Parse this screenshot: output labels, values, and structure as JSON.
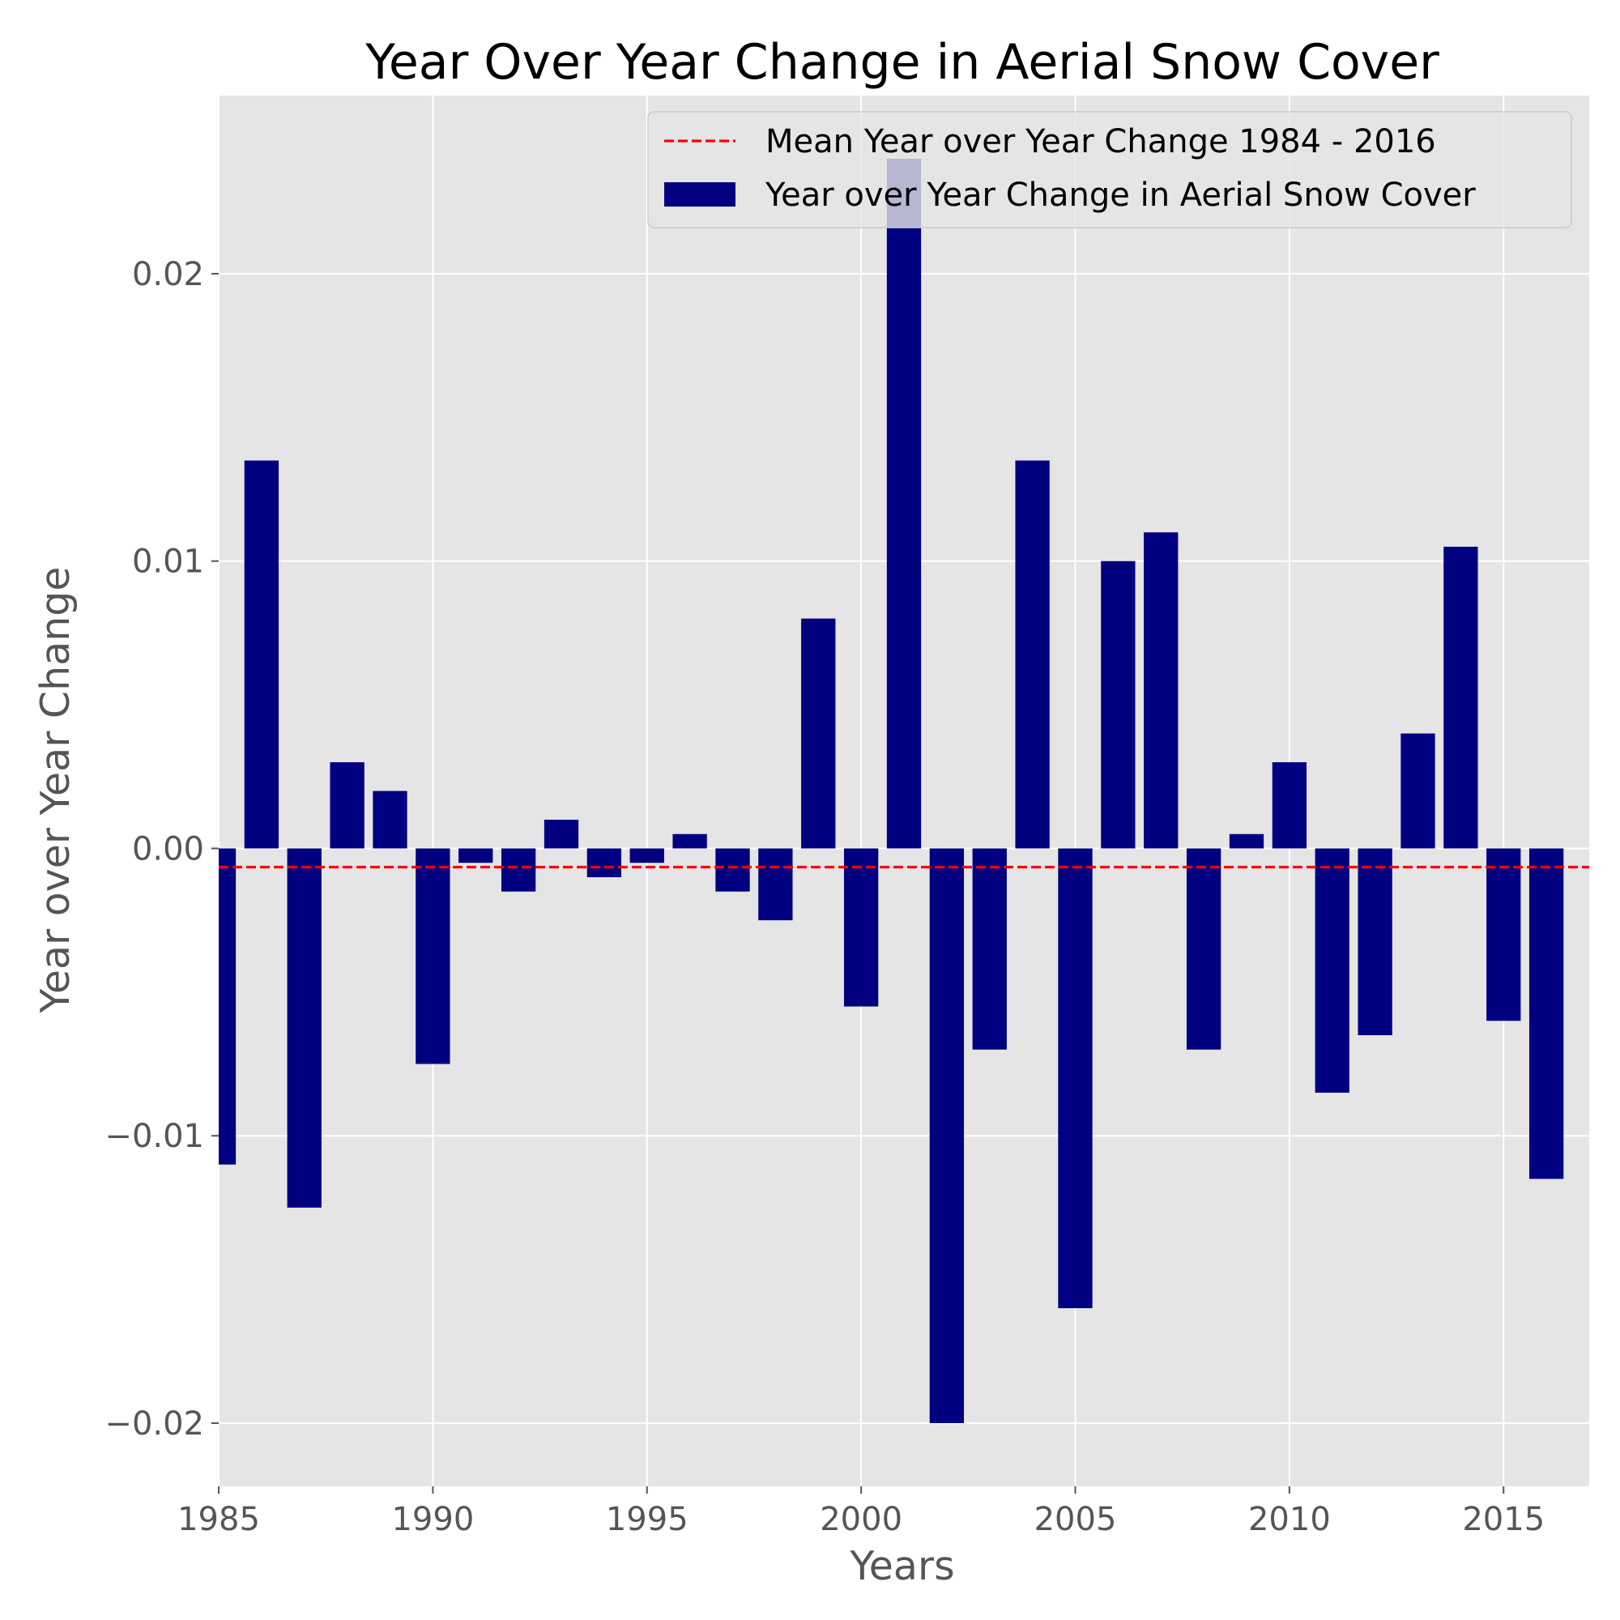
{
  "chart_data": {
    "type": "bar",
    "title": "Year Over Year Change in Aerial Snow Cover",
    "xlabel": "Years",
    "ylabel": "Year over Year Change",
    "xlim": [
      1985,
      2017
    ],
    "ylim": [
      -0.0222,
      0.0262
    ],
    "x_ticks": [
      1985,
      1990,
      1995,
      2000,
      2005,
      2010,
      2015
    ],
    "x_tick_labels": [
      "1985",
      "1990",
      "1995",
      "2000",
      "2005",
      "2010",
      "2015"
    ],
    "y_ticks": [
      -0.02,
      -0.01,
      0.0,
      0.01,
      0.02
    ],
    "y_tick_labels": [
      "−0.02",
      "−0.01",
      "0.00",
      "0.01",
      "0.02"
    ],
    "grid": true,
    "legend_position": "top-right",
    "series": [
      {
        "name": "Year over Year Change in Aerial Snow Cover",
        "color": "#000080",
        "bar_width": 0.8,
        "x": [
          1985,
          1986,
          1987,
          1988,
          1989,
          1990,
          1991,
          1992,
          1993,
          1994,
          1995,
          1996,
          1997,
          1998,
          1999,
          2000,
          2001,
          2002,
          2003,
          2004,
          2005,
          2006,
          2007,
          2008,
          2009,
          2010,
          2011,
          2012,
          2013,
          2014,
          2015,
          2016
        ],
        "values": [
          -0.011,
          0.0135,
          -0.0125,
          0.003,
          0.002,
          -0.0075,
          -0.0005,
          -0.0015,
          0.001,
          -0.001,
          -0.0005,
          0.0005,
          -0.0015,
          -0.0025,
          0.008,
          -0.0055,
          0.024,
          -0.02,
          -0.007,
          0.0135,
          -0.016,
          0.01,
          0.011,
          -0.007,
          0.0005,
          0.003,
          -0.0085,
          -0.0065,
          0.004,
          0.0105,
          -0.006,
          -0.0115
        ]
      }
    ],
    "mean_line": {
      "name": "Mean Year over Year Change 1984 - 2016",
      "value": -0.00065,
      "color": "#ff0000",
      "style": "dashed"
    },
    "colors": {
      "plot_background": "#e5e5e5",
      "grid": "#ffffff"
    }
  }
}
